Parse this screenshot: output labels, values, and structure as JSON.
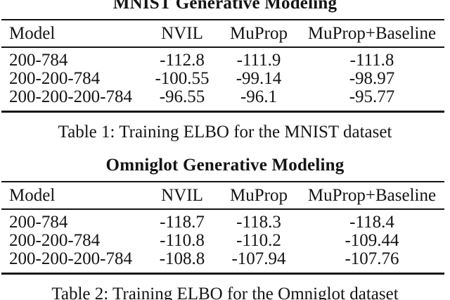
{
  "tables": [
    {
      "title": "MNIST Generative Modeling",
      "caption": "Table 1: Training ELBO for the MNIST dataset",
      "columns": [
        "Model",
        "NVIL",
        "MuProp",
        "MuProp+Baseline"
      ],
      "rows": [
        [
          "200-784",
          "-112.8",
          "-111.9",
          "-111.8"
        ],
        [
          "200-200-784",
          "-100.55",
          "-99.14",
          "-98.97"
        ],
        [
          "200-200-200-784",
          "-96.55",
          "-96.1",
          "-95.77"
        ]
      ]
    },
    {
      "title": "Omniglot Generative Modeling",
      "caption": "Table 2: Training ELBO for the Omniglot dataset",
      "columns": [
        "Model",
        "NVIL",
        "MuProp",
        "MuProp+Baseline"
      ],
      "rows": [
        [
          "200-784",
          "-118.7",
          "-118.3",
          "-118.4"
        ],
        [
          "200-200-784",
          "-110.8",
          "-110.2",
          "-109.44"
        ],
        [
          "200-200-200-784",
          "-108.8",
          "-107.94",
          "-107.76"
        ]
      ]
    }
  ],
  "colors": {
    "text": "#141414",
    "rule": "#141414",
    "background": "#ffffff"
  }
}
